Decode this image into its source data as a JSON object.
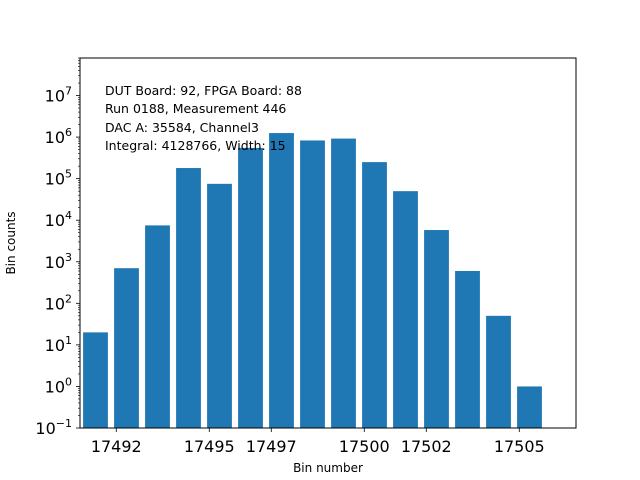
{
  "chart_data": {
    "type": "bar",
    "title": "",
    "xlabel": "Bin number",
    "ylabel": "Bin counts",
    "yscale": "log",
    "ylim": [
      0.1,
      80000000
    ],
    "xlim": [
      17490.5,
      17506.5
    ],
    "bar_color": "#1f77b4",
    "grid": false,
    "x": [
      17491,
      17492,
      17493,
      17494,
      17495,
      17496,
      17497,
      17498,
      17499,
      17500,
      17501,
      17502,
      17503,
      17504,
      17505,
      17506
    ],
    "values": [
      20,
      700,
      7500,
      180000,
      75000,
      550000,
      1250000,
      830000,
      920000,
      250000,
      50000,
      5800,
      600,
      50,
      1,
      0
    ],
    "x_ticks": [
      "17492",
      "17495",
      "17497",
      "17500",
      "17502",
      "17505"
    ],
    "x_tick_values": [
      17491.67,
      17494.67,
      17496.67,
      17499.67,
      17501.67,
      17504.67
    ],
    "y_ticks": [
      {
        "value": 0.1,
        "base": "10",
        "exp": "−1"
      },
      {
        "value": 1,
        "base": "10",
        "exp": "0"
      },
      {
        "value": 10,
        "base": "10",
        "exp": "1"
      },
      {
        "value": 100,
        "base": "10",
        "exp": "2"
      },
      {
        "value": 1000,
        "base": "10",
        "exp": "3"
      },
      {
        "value": 10000,
        "base": "10",
        "exp": "4"
      },
      {
        "value": 100000,
        "base": "10",
        "exp": "5"
      },
      {
        "value": 1000000,
        "base": "10",
        "exp": "6"
      },
      {
        "value": 10000000,
        "base": "10",
        "exp": "7"
      }
    ],
    "annotations": [
      "DUT Board: 92, FPGA Board: 88",
      "Run 0188, Measurement 446",
      "DAC A: 35584, Channel3",
      "Integral: 4128766, Width: 15"
    ]
  }
}
